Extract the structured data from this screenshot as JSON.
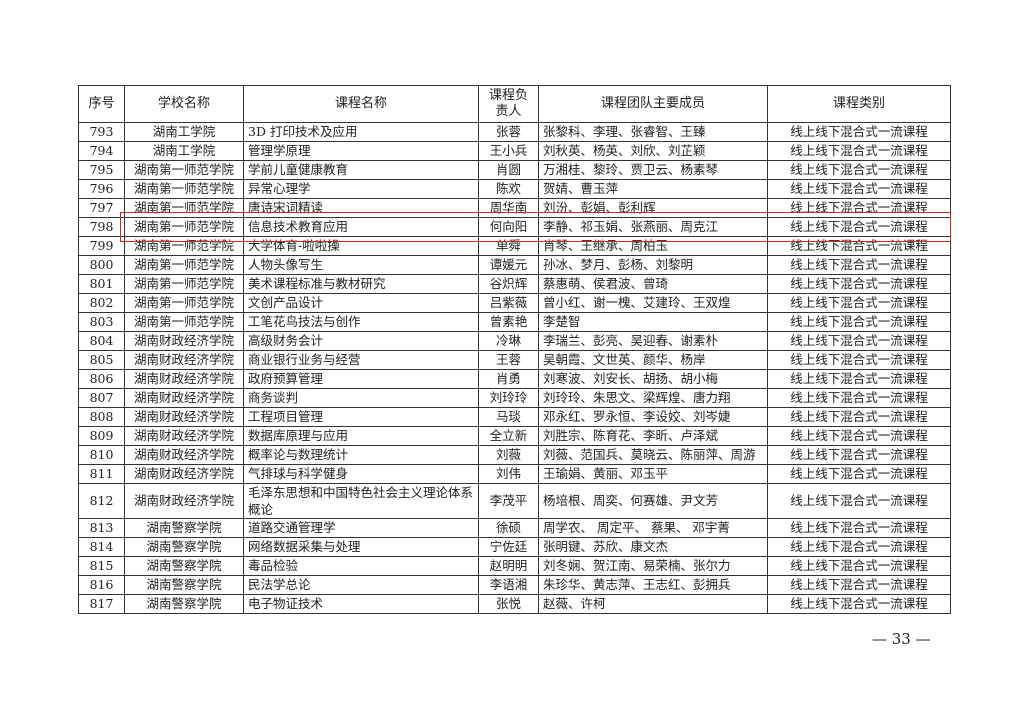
{
  "table": {
    "headers": [
      "序号",
      "学校名称",
      "课程名称",
      "课程负责人",
      "课程团队主要成员",
      "课程类别"
    ],
    "rows": [
      [
        "793",
        "湖南工学院",
        "3D 打印技术及应用",
        "张蓉",
        "张黎科、李理、张睿智、王臻",
        "线上线下混合式一流课程"
      ],
      [
        "794",
        "湖南工学院",
        "管理学原理",
        "王小兵",
        "刘秋英、杨英、刘欣、刘芷颖",
        "线上线下混合式一流课程"
      ],
      [
        "795",
        "湖南第一师范学院",
        "学前儿童健康教育",
        "肖圆",
        "万湘桂、黎玲、贾卫云、杨素琴",
        "线上线下混合式一流课程"
      ],
      [
        "796",
        "湖南第一师范学院",
        "异常心理学",
        "陈欢",
        "贺婧、曹玉萍",
        "线上线下混合式一流课程"
      ],
      [
        "797",
        "湖南第一师范学院",
        "唐诗宋词精读",
        "周华南",
        "刘汾、彭娟、彭利辉",
        "线上线下混合式一流课程"
      ],
      [
        "798",
        "湖南第一师范学院",
        "信息技术教育应用",
        "何向阳",
        "李静、祁玉娟、张燕丽、周克江",
        "线上线下混合式一流课程"
      ],
      [
        "799",
        "湖南第一师范学院",
        "大学体育-啦啦操",
        "单舜",
        "肖琴、王继承、周柏玉",
        "线上线下混合式一流课程"
      ],
      [
        "800",
        "湖南第一师范学院",
        "人物头像写生",
        "谭媛元",
        "孙冰、梦月、彭杨、刘黎明",
        "线上线下混合式一流课程"
      ],
      [
        "801",
        "湖南第一师范学院",
        "美术课程标准与教材研究",
        "谷炽辉",
        "蔡惠萌、侯君波、曾琦",
        "线上线下混合式一流课程"
      ],
      [
        "802",
        "湖南第一师范学院",
        "文创产品设计",
        "吕紫薇",
        "曾小红、谢一槐、艾建玲、王双煌",
        "线上线下混合式一流课程"
      ],
      [
        "803",
        "湖南第一师范学院",
        "工笔花鸟技法与创作",
        "曾素艳",
        "李楚智",
        "线上线下混合式一流课程"
      ],
      [
        "804",
        "湖南财政经济学院",
        "高级财务会计",
        "冷琳",
        "李瑞兰、彭亮、吴迎春、谢素朴",
        "线上线下混合式一流课程"
      ],
      [
        "805",
        "湖南财政经济学院",
        "商业银行业务与经营",
        "王蓉",
        "吴朝霞、文世英、颜华、杨岸",
        "线上线下混合式一流课程"
      ],
      [
        "806",
        "湖南财政经济学院",
        "政府预算管理",
        "肖勇",
        "刘寒波、刘安长、胡扬、胡小梅",
        "线上线下混合式一流课程"
      ],
      [
        "807",
        "湖南财政经济学院",
        "商务谈判",
        "刘玲玲",
        "刘玲玲、朱思文、梁辉煌、唐力翔",
        "线上线下混合式一流课程"
      ],
      [
        "808",
        "湖南财政经济学院",
        "工程项目管理",
        "马琰",
        "邓永红、罗永恒、李设姣、刘岑婕",
        "线上线下混合式一流课程"
      ],
      [
        "809",
        "湖南财政经济学院",
        "数据库原理与应用",
        "全立新",
        "刘胜宗、陈育花、李昕、卢泽斌",
        "线上线下混合式一流课程"
      ],
      [
        "810",
        "湖南财政经济学院",
        "概率论与数理统计",
        "刘薇",
        "刘薇、范国兵、莫晓云、陈丽萍、周游",
        "线上线下混合式一流课程"
      ],
      [
        "811",
        "湖南财政经济学院",
        "气排球与科学健身",
        "刘伟",
        "王瑜娟、黄丽、邓玉平",
        "线上线下混合式一流课程"
      ],
      [
        "812",
        "湖南财政经济学院",
        "毛泽东思想和中国特色社会主义理论体系概论",
        "李茂平",
        "杨培根、周奕、何赛雄、尹文芳",
        "线上线下混合式一流课程"
      ],
      [
        "813",
        "湖南警察学院",
        "道路交通管理学",
        "徐硕",
        "周学农、 周定平、 蔡果、 邓宇菁",
        "线上线下混合式一流课程"
      ],
      [
        "814",
        "湖南警察学院",
        "网络数据采集与处理",
        "宁佐廷",
        "张明键、苏欣、康文杰",
        "线上线下混合式一流课程"
      ],
      [
        "815",
        "湖南警察学院",
        "毒品检验",
        "赵明明",
        "刘冬娴、贺江南、易荣楠、张尔力",
        "线上线下混合式一流课程"
      ],
      [
        "816",
        "湖南警察学院",
        "民法学总论",
        "李语湘",
        "朱珍华、黄志萍、王志红、彭拥兵",
        "线上线下混合式一流课程"
      ],
      [
        "817",
        "湖南警察学院",
        "电子物证技术",
        "张悦",
        "赵薇、许柯",
        "线上线下混合式一流课程"
      ]
    ],
    "highlighted_row": "798",
    "highlight_color": "#dd2222"
  },
  "page_number": "— 33 —"
}
